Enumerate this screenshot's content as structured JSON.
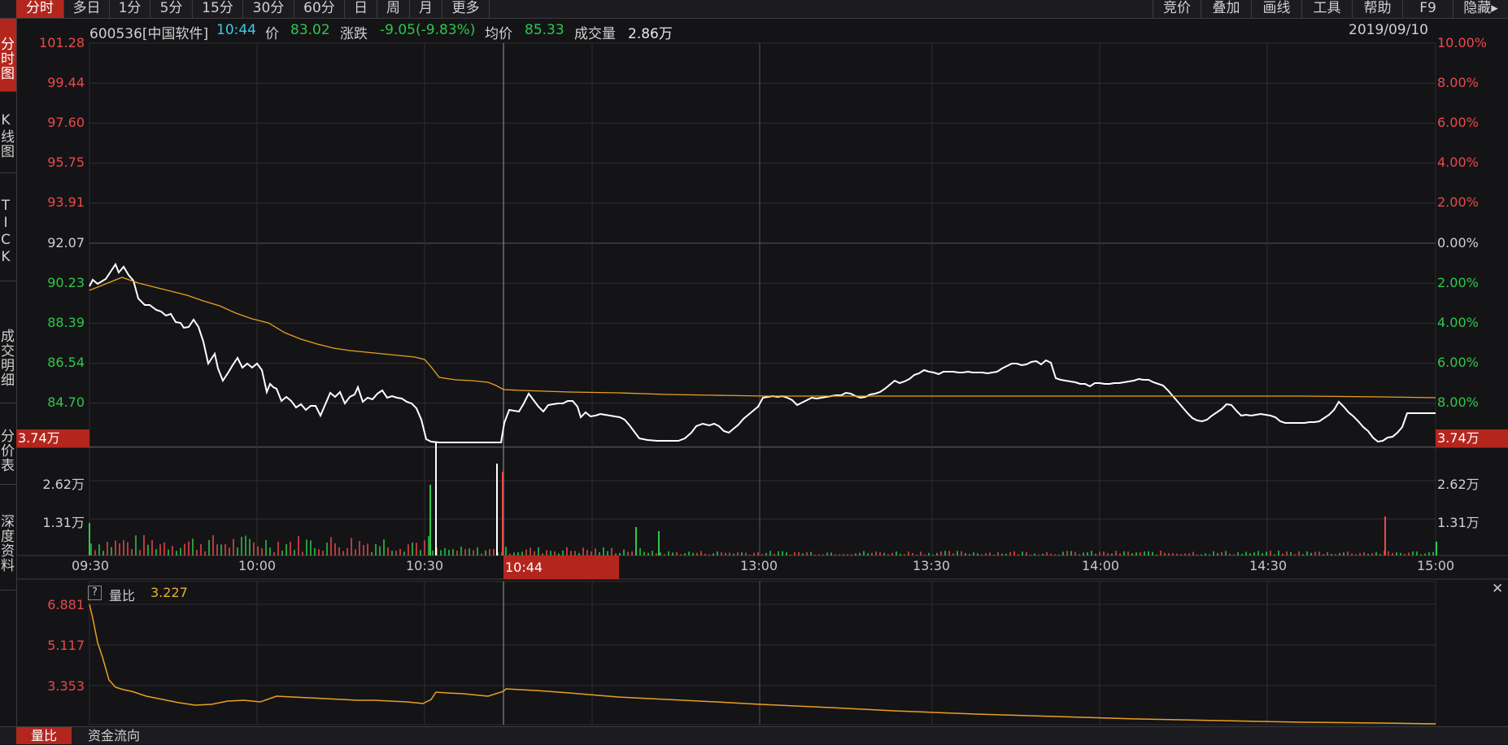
{
  "toolbar": {
    "left_items": [
      "分时",
      "多日",
      "1分",
      "5分",
      "15分",
      "30分",
      "60分",
      "日",
      "周",
      "月",
      "更多"
    ],
    "right_items": [
      "竞价",
      "叠加",
      "画线",
      "工具",
      "帮助",
      "F9",
      "隐藏▸"
    ]
  },
  "left_tabs": [
    "分时图",
    "K线图",
    "TICK",
    "成交明细",
    "分价表",
    "深度资料"
  ],
  "info": {
    "code": "600536[中国软件]",
    "time": "10:44",
    "price_label": "价",
    "price": "83.02",
    "change_label": "涨跌",
    "change": "-9.05(-9.83%)",
    "avg_label": "均价",
    "avg": "85.33",
    "volume_label": "成交量",
    "volume": "2.86万",
    "date": "2019/09/10"
  },
  "price_axis": {
    "left": [
      "101.28",
      "99.44",
      "97.60",
      "95.75",
      "93.91",
      "92.07",
      "90.23",
      "88.39",
      "86.54",
      "84.70"
    ],
    "right": [
      "10.00%",
      "8.00%",
      "6.00%",
      "4.00%",
      "2.00%",
      "0.00%",
      "2.00%",
      "4.00%",
      "6.00%",
      "8.00%"
    ],
    "marker": "3.74万"
  },
  "volume_axis": {
    "labels": [
      "2.62万",
      "1.31万"
    ]
  },
  "time_axis": {
    "labels": [
      "09:30",
      "10:00",
      "10:30",
      "13:00",
      "13:30",
      "14:00",
      "14:30",
      "15:00"
    ],
    "cursor": "10:44"
  },
  "ratio_panel": {
    "help": "?",
    "title": "量比",
    "value": "3.227",
    "axis": [
      "6.881",
      "5.117",
      "3.353"
    ]
  },
  "bottom_tabs": [
    "量比",
    "资金流向"
  ],
  "colors": {
    "up": "#e84a4a",
    "down": "#2ec84a",
    "price_line": "#ffffff",
    "avg_line": "#e8a020",
    "active": "#b3261e"
  },
  "icons": {
    "close": "close-icon"
  }
}
